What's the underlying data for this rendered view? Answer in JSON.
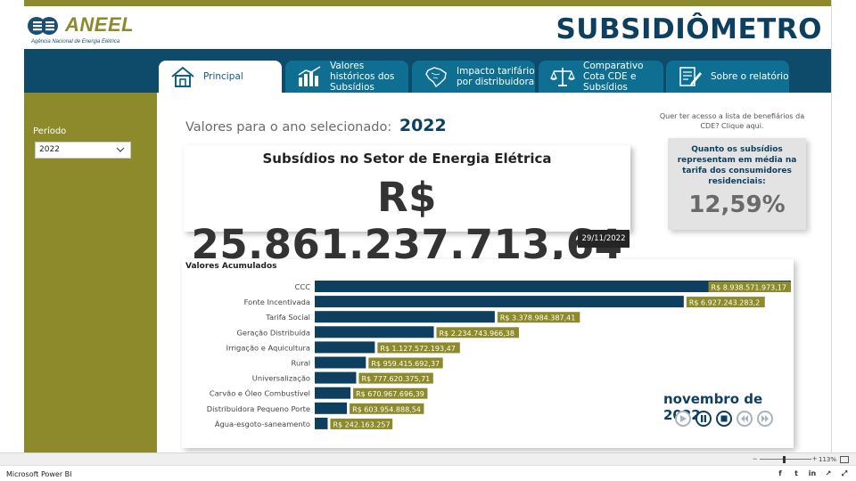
{
  "header": {
    "logo_text": "ANEEL",
    "logo_subtitle": "Agência Nacional de Energia Elétrica",
    "app_title": "SUBSIDIÔMETRO"
  },
  "tabs": [
    {
      "label": "Principal",
      "icon": "house-icon",
      "active": true
    },
    {
      "label": "Valores históricos dos Subsídios",
      "icon": "bar-chart-icon",
      "active": false
    },
    {
      "label": "Impacto tarifário por distribuidora",
      "icon": "brazil-map-icon",
      "active": false
    },
    {
      "label": "Comparativo Cota CDE e Subsídios",
      "icon": "scales-icon",
      "active": false
    },
    {
      "label": "Sobre o relatório",
      "icon": "document-edit-icon",
      "active": false
    }
  ],
  "sidebar": {
    "period_label": "Período",
    "period_value": "2022"
  },
  "main": {
    "year_prefix": "Valores para o ano selecionado:",
    "year_value": "2022",
    "card_title": "Subsídios no Setor de Energia Elétrica",
    "total_value": "R$ 25.861.237.713,64",
    "date_badge": "29/11/2022",
    "cde_link": "Quer ter acesso a lista de benefiários da CDE? Clique aqui.",
    "pct_title": "Quanto os subsídios representam em média na tarifa dos consumidores residenciais:",
    "pct_value": "12,59%",
    "month_label": "novembro de 2022"
  },
  "chart_data": {
    "type": "bar",
    "orientation": "horizontal",
    "title": "Valores Acumulados",
    "categories": [
      "CCC",
      "Fonte Incentivada",
      "Tarifa Social",
      "Geração Distribuída",
      "Irrigação e Aquicultura",
      "Rural",
      "Universalização",
      "Carvão e Óleo Combustível",
      "Distribuidora Pequeno Porte",
      "Água-esgoto-saneamento"
    ],
    "values": [
      8938571973.17,
      6927243283.2,
      3378984387.41,
      2234743966.38,
      1127572193.47,
      959415692.37,
      777620375.71,
      670967696.39,
      603954888.54,
      242163257
    ],
    "data_labels": [
      "R$ 8.938.571.973,17",
      "R$ 6.927.243.283,2",
      "R$ 3.378.984.387,41",
      "R$ 2.234.743.966,38",
      "R$ 1.127.572.193,47",
      "R$ 959.415.692,37",
      "R$ 777.620.375,71",
      "R$ 670.967.696,39",
      "R$ 603.954.888,54",
      "R$ 242.163.257"
    ],
    "xlim": [
      0,
      8938571973.17
    ],
    "bar_color": "#0e3f5f",
    "label_color": "#8c8a2a",
    "grid": false
  },
  "playback": [
    {
      "name": "play",
      "icon": "play-icon",
      "enabled": false
    },
    {
      "name": "pause",
      "icon": "pause-icon",
      "enabled": true
    },
    {
      "name": "stop",
      "icon": "stop-icon",
      "enabled": true
    },
    {
      "name": "previous",
      "icon": "skip-back-icon",
      "enabled": false
    },
    {
      "name": "next",
      "icon": "skip-forward-icon",
      "enabled": false
    }
  ],
  "statusbar": {
    "zoom_value": "113%"
  },
  "bottombar": {
    "app_name": "Microsoft Power BI"
  },
  "colors": {
    "olive": "#8c8a2a",
    "navy": "#0e4a6a",
    "tab": "#0f6f92",
    "dark_text": "#0e3f5f"
  }
}
